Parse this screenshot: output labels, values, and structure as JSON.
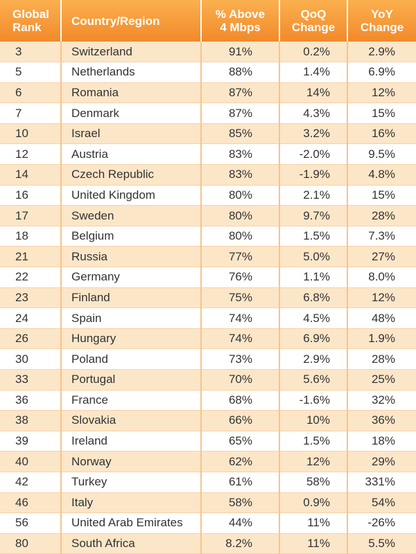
{
  "headers": {
    "rank": [
      "Global",
      "Rank"
    ],
    "country": [
      "Country/Region"
    ],
    "pct": [
      "% Above",
      "4 Mbps"
    ],
    "qoq": [
      "QoQ",
      "Change"
    ],
    "yoy": [
      "YoY",
      "Change"
    ]
  },
  "rows": [
    {
      "rank": "3",
      "country": "Switzerland",
      "pct": "91%",
      "qoq": "0.2%",
      "yoy": "2.9%"
    },
    {
      "rank": "5",
      "country": "Netherlands",
      "pct": "88%",
      "qoq": "1.4%",
      "yoy": "6.9%"
    },
    {
      "rank": "6",
      "country": "Romania",
      "pct": "87%",
      "qoq": "14%",
      "yoy": "12%"
    },
    {
      "rank": "7",
      "country": "Denmark",
      "pct": "87%",
      "qoq": "4.3%",
      "yoy": "15%"
    },
    {
      "rank": "10",
      "country": "Israel",
      "pct": "85%",
      "qoq": "3.2%",
      "yoy": "16%"
    },
    {
      "rank": "12",
      "country": "Austria",
      "pct": "83%",
      "qoq": "-2.0%",
      "yoy": "9.5%"
    },
    {
      "rank": "14",
      "country": "Czech Republic",
      "pct": "83%",
      "qoq": "-1.9%",
      "yoy": "4.8%"
    },
    {
      "rank": "16",
      "country": "United Kingdom",
      "pct": "80%",
      "qoq": "2.1%",
      "yoy": "15%"
    },
    {
      "rank": "17",
      "country": "Sweden",
      "pct": "80%",
      "qoq": "9.7%",
      "yoy": "28%"
    },
    {
      "rank": "18",
      "country": "Belgium",
      "pct": "80%",
      "qoq": "1.5%",
      "yoy": "7.3%"
    },
    {
      "rank": "21",
      "country": "Russia",
      "pct": "77%",
      "qoq": "5.0%",
      "yoy": "27%"
    },
    {
      "rank": "22",
      "country": "Germany",
      "pct": "76%",
      "qoq": "1.1%",
      "yoy": "8.0%"
    },
    {
      "rank": "23",
      "country": "Finland",
      "pct": "75%",
      "qoq": "6.8%",
      "yoy": "12%"
    },
    {
      "rank": "24",
      "country": "Spain",
      "pct": "74%",
      "qoq": "4.5%",
      "yoy": "48%"
    },
    {
      "rank": "26",
      "country": "Hungary",
      "pct": "74%",
      "qoq": "6.9%",
      "yoy": "1.9%"
    },
    {
      "rank": "30",
      "country": "Poland",
      "pct": "73%",
      "qoq": "2.9%",
      "yoy": "28%"
    },
    {
      "rank": "33",
      "country": "Portugal",
      "pct": "70%",
      "qoq": "5.6%",
      "yoy": "25%"
    },
    {
      "rank": "36",
      "country": "France",
      "pct": "68%",
      "qoq": "-1.6%",
      "yoy": "32%"
    },
    {
      "rank": "38",
      "country": "Slovakia",
      "pct": "66%",
      "qoq": "10%",
      "yoy": "36%"
    },
    {
      "rank": "39",
      "country": "Ireland",
      "pct": "65%",
      "qoq": "1.5%",
      "yoy": "18%"
    },
    {
      "rank": "40",
      "country": "Norway",
      "pct": "62%",
      "qoq": "12%",
      "yoy": "29%"
    },
    {
      "rank": "42",
      "country": "Turkey",
      "pct": "61%",
      "qoq": "58%",
      "yoy": "331%"
    },
    {
      "rank": "46",
      "country": "Italy",
      "pct": "58%",
      "qoq": "0.9%",
      "yoy": "54%"
    },
    {
      "rank": "56",
      "country": "United Arab Emirates",
      "pct": "44%",
      "qoq": "11%",
      "yoy": "-26%"
    },
    {
      "rank": "80",
      "country": "South Africa",
      "pct": "8.2%",
      "qoq": "11%",
      "yoy": "5.5%"
    }
  ],
  "colors": {
    "header_top": "#fbb04f",
    "header_bottom": "#f2892a",
    "row_stripe": "#fce6c8",
    "row_plain": "#ffffff",
    "text": "#333333"
  }
}
